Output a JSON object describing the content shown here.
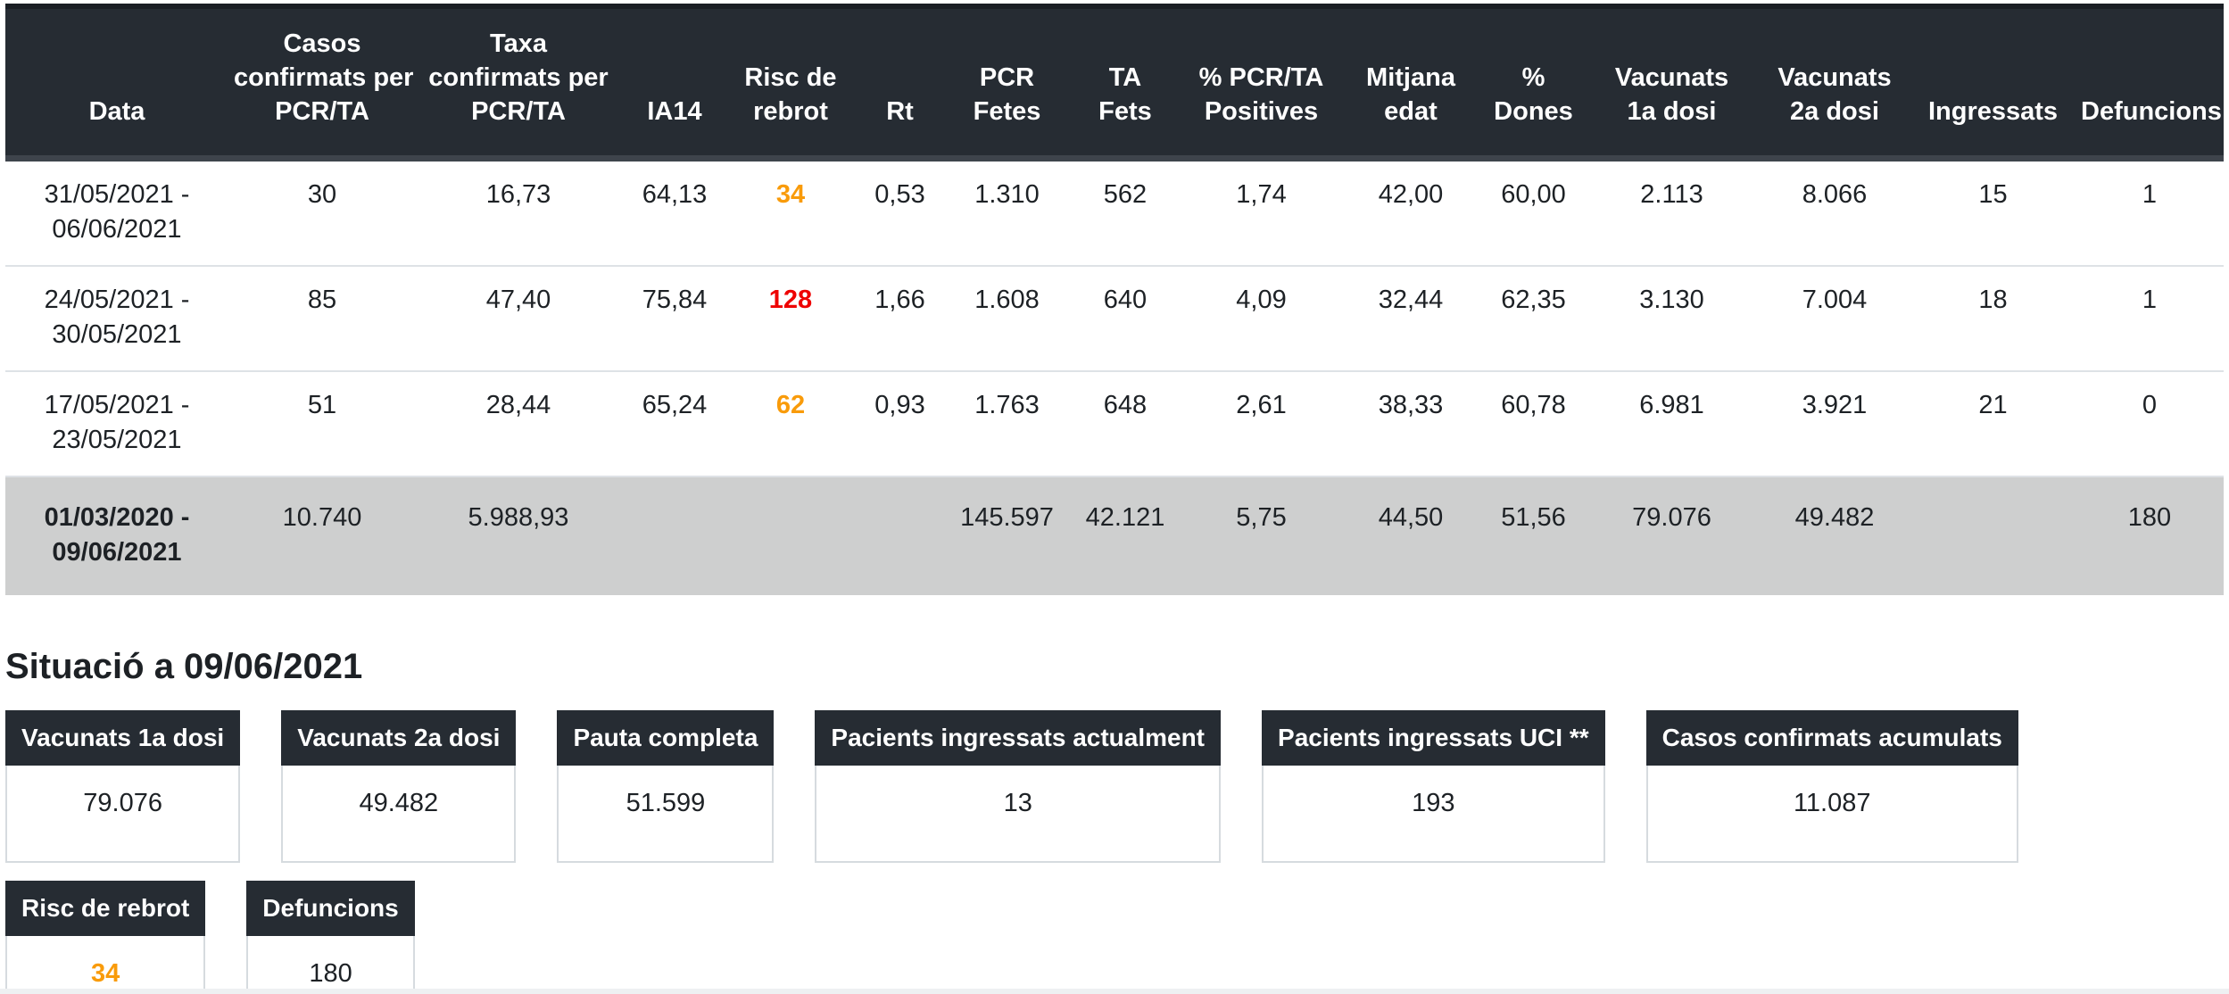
{
  "table": {
    "columns": [
      {
        "lines": [
          "Data"
        ]
      },
      {
        "lines": [
          "Casos",
          "confirmats per",
          "PCR/TA"
        ]
      },
      {
        "lines": [
          "Taxa",
          "confirmats per",
          "PCR/TA"
        ]
      },
      {
        "lines": [
          "IA14"
        ]
      },
      {
        "lines": [
          "Risc de",
          "rebrot"
        ]
      },
      {
        "lines": [
          "Rt"
        ]
      },
      {
        "lines": [
          "PCR",
          "Fetes"
        ]
      },
      {
        "lines": [
          "TA",
          "Fets"
        ]
      },
      {
        "lines": [
          "% PCR/TA",
          "Positives"
        ]
      },
      {
        "lines": [
          "Mitjana",
          "edat"
        ]
      },
      {
        "lines": [
          "%",
          "Dones"
        ]
      },
      {
        "lines": [
          "Vacunats",
          "1a dosi"
        ]
      },
      {
        "lines": [
          "Vacunats",
          "2a dosi"
        ]
      },
      {
        "lines": [
          "Ingressats"
        ]
      },
      {
        "lines": [
          "Defuncions"
        ]
      }
    ],
    "rows": [
      {
        "period": [
          "31/05/2021 -",
          "06/06/2021"
        ],
        "cells": [
          "30",
          "16,73",
          "64,13",
          {
            "text": "34",
            "color": "orange"
          },
          "0,53",
          "1.310",
          "562",
          "1,74",
          "42,00",
          "60,00",
          "2.113",
          "8.066",
          "15",
          "1"
        ]
      },
      {
        "period": [
          "24/05/2021 -",
          "30/05/2021"
        ],
        "cells": [
          "85",
          "47,40",
          "75,84",
          {
            "text": "128",
            "color": "red"
          },
          "1,66",
          "1.608",
          "640",
          "4,09",
          "32,44",
          "62,35",
          "3.130",
          "7.004",
          "18",
          "1"
        ]
      },
      {
        "period": [
          "17/05/2021 -",
          "23/05/2021"
        ],
        "cells": [
          "51",
          "28,44",
          "65,24",
          {
            "text": "62",
            "color": "orange"
          },
          "0,93",
          "1.763",
          "648",
          "2,61",
          "38,33",
          "60,78",
          "6.981",
          "3.921",
          "21",
          "0"
        ]
      },
      {
        "total": true,
        "period": [
          "01/03/2020 -",
          "09/06/2021"
        ],
        "cells": [
          "10.740",
          "5.988,93",
          "",
          "",
          "",
          "145.597",
          "42.121",
          "5,75",
          "44,50",
          "51,56",
          "79.076",
          "49.482",
          "",
          "180"
        ]
      }
    ]
  },
  "situation": {
    "title": "Situació a 09/06/2021",
    "cards": [
      {
        "label": "Vacunats 1a dosi",
        "value": "79.076"
      },
      {
        "label": "Vacunats 2a dosi",
        "value": "49.482"
      },
      {
        "label": "Pauta completa",
        "value": "51.599"
      },
      {
        "label": "Pacients ingressats actualment",
        "value": "13"
      },
      {
        "label": "Pacients ingressats UCI **",
        "value": "193"
      },
      {
        "label": "Casos confirmats acumulats",
        "value": "11.087"
      },
      {
        "label": "Risc de rebrot",
        "value": "34",
        "color": "orange"
      },
      {
        "label": "Defuncions",
        "value": "180"
      }
    ]
  },
  "colors": {
    "header_background": "#262C33",
    "header_text": "#FFFFFF",
    "total_row_background": "#CECFCF",
    "risk_orange": "#F99B0A",
    "risk_red": "#EE0000",
    "body_text": "#1D2125",
    "row_divider": "#DEE2E6",
    "card_border": "#D6DBDF"
  }
}
